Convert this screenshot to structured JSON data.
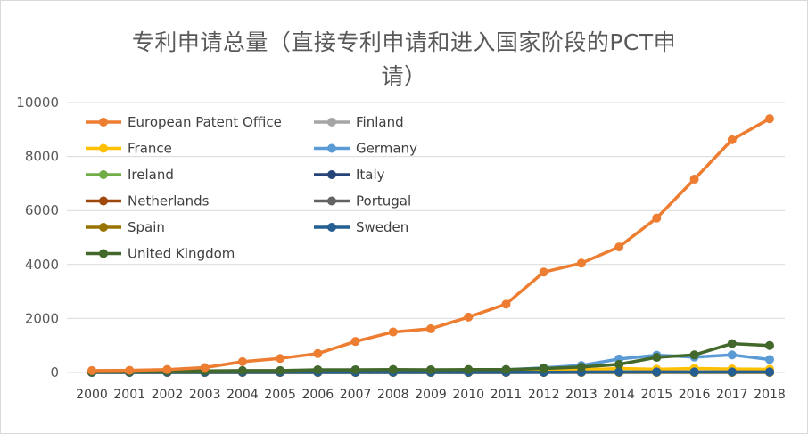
{
  "chart_data": {
    "type": "line",
    "title": "专利申请总量（直接专利申请和进入国家阶段的PCT申请）",
    "title_lines": [
      "专利申请总量（直接专利申请和进入国家阶段的PCT申",
      "请）"
    ],
    "xlabel": "",
    "ylabel": "",
    "x": [
      "2000",
      "2001",
      "2002",
      "2003",
      "2004",
      "2005",
      "2006",
      "2007",
      "2008",
      "2009",
      "2010",
      "2011",
      "2012",
      "2013",
      "2014",
      "2015",
      "2016",
      "2017",
      "2018"
    ],
    "ylim": [
      0,
      10000
    ],
    "yticks": [
      "0",
      "2000",
      "4000",
      "6000",
      "8000",
      "10000"
    ],
    "grid": true,
    "legend_position": "top-left",
    "series": [
      {
        "name": "European Patent Office",
        "color": "#ED7D31",
        "values": [
          70,
          80,
          110,
          180,
          400,
          520,
          700,
          1150,
          1500,
          1620,
          2050,
          2530,
          3720,
          4050,
          4650,
          5720,
          7160,
          8620,
          9400
        ]
      },
      {
        "name": "Finland",
        "color": "#A5A5A5",
        "values": [
          5,
          5,
          5,
          5,
          5,
          5,
          5,
          5,
          5,
          5,
          5,
          5,
          5,
          10,
          10,
          10,
          10,
          10,
          10
        ]
      },
      {
        "name": "France",
        "color": "#FFC000",
        "values": [
          10,
          10,
          10,
          15,
          20,
          20,
          30,
          30,
          40,
          40,
          50,
          60,
          80,
          100,
          150,
          120,
          150,
          130,
          120
        ]
      },
      {
        "name": "Germany",
        "color": "#5B9BD5",
        "values": [
          20,
          20,
          25,
          30,
          40,
          40,
          50,
          60,
          70,
          80,
          90,
          100,
          170,
          260,
          500,
          640,
          570,
          650,
          480
        ]
      },
      {
        "name": "Ireland",
        "color": "#70AD47",
        "values": [
          2,
          2,
          2,
          2,
          2,
          2,
          2,
          2,
          2,
          2,
          2,
          5,
          5,
          5,
          5,
          5,
          5,
          5,
          5
        ]
      },
      {
        "name": "Italy",
        "color": "#264478",
        "values": [
          3,
          3,
          3,
          3,
          3,
          3,
          3,
          3,
          3,
          3,
          3,
          3,
          5,
          5,
          10,
          10,
          10,
          10,
          10
        ]
      },
      {
        "name": "Netherlands",
        "color": "#9E480E",
        "values": [
          5,
          5,
          5,
          5,
          5,
          5,
          5,
          5,
          5,
          5,
          10,
          10,
          10,
          10,
          10,
          10,
          10,
          10,
          10
        ]
      },
      {
        "name": "Portugal",
        "color": "#636363",
        "values": [
          0,
          0,
          0,
          0,
          0,
          0,
          0,
          0,
          0,
          0,
          0,
          0,
          0,
          0,
          0,
          0,
          0,
          0,
          0
        ]
      },
      {
        "name": "Spain",
        "color": "#997300",
        "values": [
          2,
          2,
          2,
          2,
          2,
          2,
          2,
          2,
          2,
          2,
          2,
          2,
          5,
          5,
          5,
          5,
          5,
          5,
          5
        ]
      },
      {
        "name": "Sweden",
        "color": "#255E91",
        "values": [
          10,
          10,
          10,
          10,
          10,
          10,
          10,
          10,
          10,
          10,
          10,
          10,
          10,
          15,
          20,
          20,
          20,
          20,
          20
        ]
      },
      {
        "name": "United Kingdom",
        "color": "#43682B",
        "values": [
          30,
          40,
          50,
          60,
          70,
          70,
          100,
          100,
          110,
          100,
          110,
          110,
          150,
          200,
          300,
          560,
          650,
          1070,
          1000
        ]
      }
    ]
  }
}
